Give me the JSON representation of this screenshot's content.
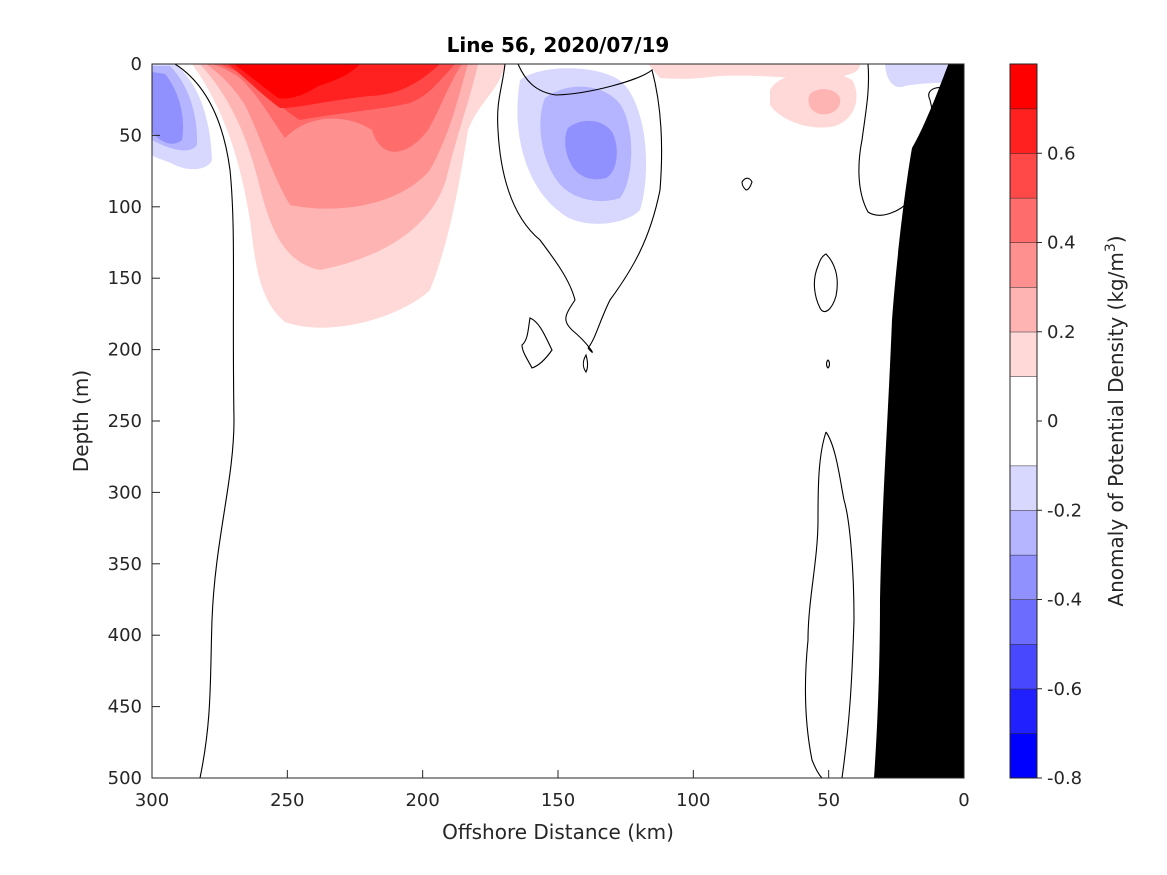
{
  "chart_data": {
    "type": "heatmap",
    "title": "Line 56, 2020/07/19",
    "xlabel": "Offshore Distance (km)",
    "ylabel": "Depth (m)",
    "xlim": [
      300,
      0
    ],
    "ylim": [
      500,
      0
    ],
    "x_reversed": true,
    "y_reversed": true,
    "xticks": [
      300,
      250,
      200,
      150,
      100,
      50,
      0
    ],
    "yticks": [
      0,
      50,
      100,
      150,
      200,
      250,
      300,
      350,
      400,
      450,
      500
    ],
    "grid": false,
    "colorbar": {
      "label": "Anomaly of Potential Density (kg/m",
      "label_sup": "3",
      "label_close": ")",
      "range": [
        -0.8,
        0.8
      ],
      "ticks": [
        -0.8,
        -0.6,
        -0.4,
        -0.2,
        0,
        0.2,
        0.4,
        0.6
      ],
      "levels": [
        -0.8,
        -0.7,
        -0.6,
        -0.5,
        -0.4,
        -0.3,
        -0.2,
        -0.1,
        0.1,
        0.2,
        0.3,
        0.4,
        0.5,
        0.6,
        0.7,
        0.8
      ],
      "colors": [
        "#0000ff",
        "#2020ff",
        "#4848ff",
        "#6c6cff",
        "#9090ff",
        "#b4b4ff",
        "#d8d8ff",
        "#ffffff",
        "#ffd8d8",
        "#ffb4b4",
        "#ff9090",
        "#ff6c6c",
        "#ff4848",
        "#ff2020",
        "#ff0000"
      ]
    },
    "features": [
      {
        "name": "offshore-negative-anomaly",
        "center_km": 295,
        "center_depth_m": 80,
        "min_value": -0.4
      },
      {
        "name": "nearshore-negative-anomaly",
        "center_km": 138,
        "center_depth_m": 63,
        "min_value": -0.4
      },
      {
        "name": "positive-core",
        "center_km": 250,
        "center_depth_m": 20,
        "max_value": 0.7
      },
      {
        "name": "small-positive-patch",
        "center_km": 48,
        "center_depth_m": 28,
        "max_value": 0.3
      },
      {
        "name": "seafloor-bathymetry",
        "color": "#000000"
      }
    ]
  }
}
